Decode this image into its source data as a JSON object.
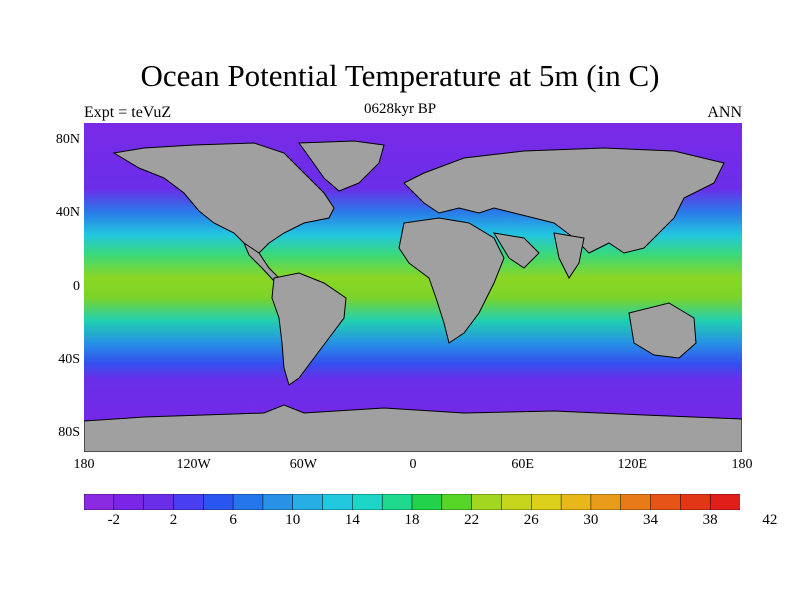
{
  "title": "Ocean Potential Temperature at 5m (in C)",
  "subtitle": "0628kyr BP",
  "left_label": "Expt = teVuZ",
  "right_label": "ANN",
  "lat_ticks": [
    "80N",
    "40N",
    "0",
    "40S",
    "80S"
  ],
  "lat_values": [
    80,
    40,
    0,
    -40,
    -80
  ],
  "lon_ticks": [
    "180",
    "120W",
    "60W",
    "0",
    "60E",
    "120E",
    "180"
  ],
  "lon_values": [
    -180,
    -120,
    -60,
    0,
    60,
    120,
    180
  ],
  "colorbar": {
    "labels": [
      "-2",
      "2",
      "6",
      "10",
      "14",
      "18",
      "22",
      "26",
      "30",
      "34",
      "38",
      "42"
    ],
    "colors": [
      "#8a2be2",
      "#7b26e6",
      "#6a2ee9",
      "#4a3ff0",
      "#2a55f0",
      "#2476ea",
      "#2a92e6",
      "#27aee4",
      "#22c8e0",
      "#1ed6c8",
      "#1fd98e",
      "#22d24a",
      "#58d627",
      "#a2d61f",
      "#c6d61d",
      "#ddd01a",
      "#e8b81a",
      "#e99c1a",
      "#e87a18",
      "#e65418",
      "#e33617",
      "#e01e1a"
    ]
  },
  "map_colors": {
    "land": "#a0a0a0",
    "coast": "#000000"
  }
}
